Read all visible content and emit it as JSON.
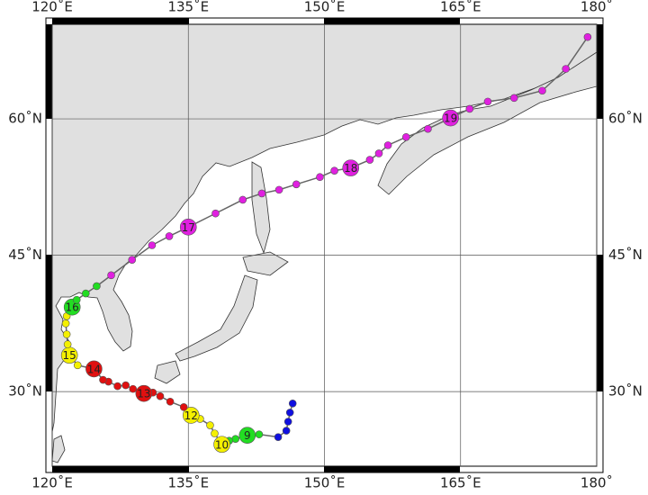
{
  "map": {
    "xlim": [
      120,
      180
    ],
    "ylim": [
      21.8,
      70.4
    ],
    "xticks": [
      {
        "value": 120,
        "label": "120˚E"
      },
      {
        "value": 135,
        "label": "135˚E"
      },
      {
        "value": 150,
        "label": "150˚E"
      },
      {
        "value": 165,
        "label": "165˚E"
      },
      {
        "value": 180,
        "label": "180˚"
      }
    ],
    "yticks": [
      {
        "value": 30,
        "label": "30˚N"
      },
      {
        "value": 45,
        "label": "45˚N"
      },
      {
        "value": 60,
        "label": "60˚N"
      }
    ],
    "grid": true,
    "line_color": "#666666",
    "track": [
      {
        "color": "#1010e0",
        "points": [
          {
            "lon": 146.5,
            "lat": 28.7
          },
          {
            "lon": 146.2,
            "lat": 27.7
          },
          {
            "lon": 146.0,
            "lat": 26.7
          },
          {
            "lon": 145.8,
            "lat": 25.7
          },
          {
            "lon": 144.9,
            "lat": 25.0
          }
        ]
      },
      {
        "color": "#22dd22",
        "points": [
          {
            "lon": 142.8,
            "lat": 25.3
          },
          {
            "lon": 141.5,
            "lat": 25.2,
            "label": "9"
          },
          {
            "lon": 140.2,
            "lat": 24.8
          },
          {
            "lon": 139.5,
            "lat": 24.6
          }
        ]
      },
      {
        "color": "#f4f000",
        "points": [
          {
            "lon": 138.7,
            "lat": 24.2,
            "label": "10"
          },
          {
            "lon": 137.9,
            "lat": 25.4
          },
          {
            "lon": 137.4,
            "lat": 26.3
          },
          {
            "lon": 136.3,
            "lat": 27.0
          },
          {
            "lon": 135.3,
            "lat": 27.4,
            "label": "12"
          }
        ]
      },
      {
        "color": "#e01010",
        "points": [
          {
            "lon": 134.5,
            "lat": 28.3
          },
          {
            "lon": 133.0,
            "lat": 28.9
          },
          {
            "lon": 131.9,
            "lat": 29.5
          },
          {
            "lon": 131.1,
            "lat": 29.9
          },
          {
            "lon": 130.1,
            "lat": 29.8,
            "label": "13"
          },
          {
            "lon": 128.9,
            "lat": 30.3
          },
          {
            "lon": 128.1,
            "lat": 30.7
          },
          {
            "lon": 127.2,
            "lat": 30.6
          },
          {
            "lon": 126.2,
            "lat": 31.1
          },
          {
            "lon": 125.6,
            "lat": 31.3
          },
          {
            "lon": 124.6,
            "lat": 32.5,
            "label": "14"
          }
        ]
      },
      {
        "color": "#f4f000",
        "points": [
          {
            "lon": 122.8,
            "lat": 32.9
          },
          {
            "lon": 121.9,
            "lat": 34.0,
            "label": "15"
          },
          {
            "lon": 121.7,
            "lat": 35.2
          },
          {
            "lon": 121.6,
            "lat": 36.3
          },
          {
            "lon": 121.5,
            "lat": 37.5
          },
          {
            "lon": 121.6,
            "lat": 38.3
          }
        ]
      },
      {
        "color": "#22dd22",
        "points": [
          {
            "lon": 122.2,
            "lat": 39.3,
            "label": "16"
          },
          {
            "lon": 122.7,
            "lat": 40.1
          },
          {
            "lon": 123.7,
            "lat": 40.8
          },
          {
            "lon": 124.9,
            "lat": 41.6
          }
        ]
      },
      {
        "color": "#e020e0",
        "points": [
          {
            "lon": 126.5,
            "lat": 42.8
          },
          {
            "lon": 128.8,
            "lat": 44.5
          },
          {
            "lon": 131.0,
            "lat": 46.1
          },
          {
            "lon": 132.9,
            "lat": 47.1
          },
          {
            "lon": 135.0,
            "lat": 48.1,
            "label": "17"
          },
          {
            "lon": 138.0,
            "lat": 49.6
          },
          {
            "lon": 141.0,
            "lat": 51.1
          },
          {
            "lon": 143.1,
            "lat": 51.8
          },
          {
            "lon": 145.0,
            "lat": 52.2
          },
          {
            "lon": 146.9,
            "lat": 52.8
          },
          {
            "lon": 149.5,
            "lat": 53.6
          },
          {
            "lon": 151.1,
            "lat": 54.3
          },
          {
            "lon": 152.9,
            "lat": 54.6,
            "label": "18"
          },
          {
            "lon": 155.0,
            "lat": 55.5
          },
          {
            "lon": 156.0,
            "lat": 56.2
          },
          {
            "lon": 157.0,
            "lat": 57.1
          },
          {
            "lon": 159.0,
            "lat": 58.0
          },
          {
            "lon": 161.4,
            "lat": 58.9
          },
          {
            "lon": 163.9,
            "lat": 60.1,
            "label": "19"
          },
          {
            "lon": 166.0,
            "lat": 61.1
          },
          {
            "lon": 168.0,
            "lat": 61.9
          },
          {
            "lon": 170.9,
            "lat": 62.3
          },
          {
            "lon": 174.0,
            "lat": 63.1
          },
          {
            "lon": 176.6,
            "lat": 65.5
          },
          {
            "lon": 179.0,
            "lat": 69.0
          }
        ]
      }
    ]
  }
}
